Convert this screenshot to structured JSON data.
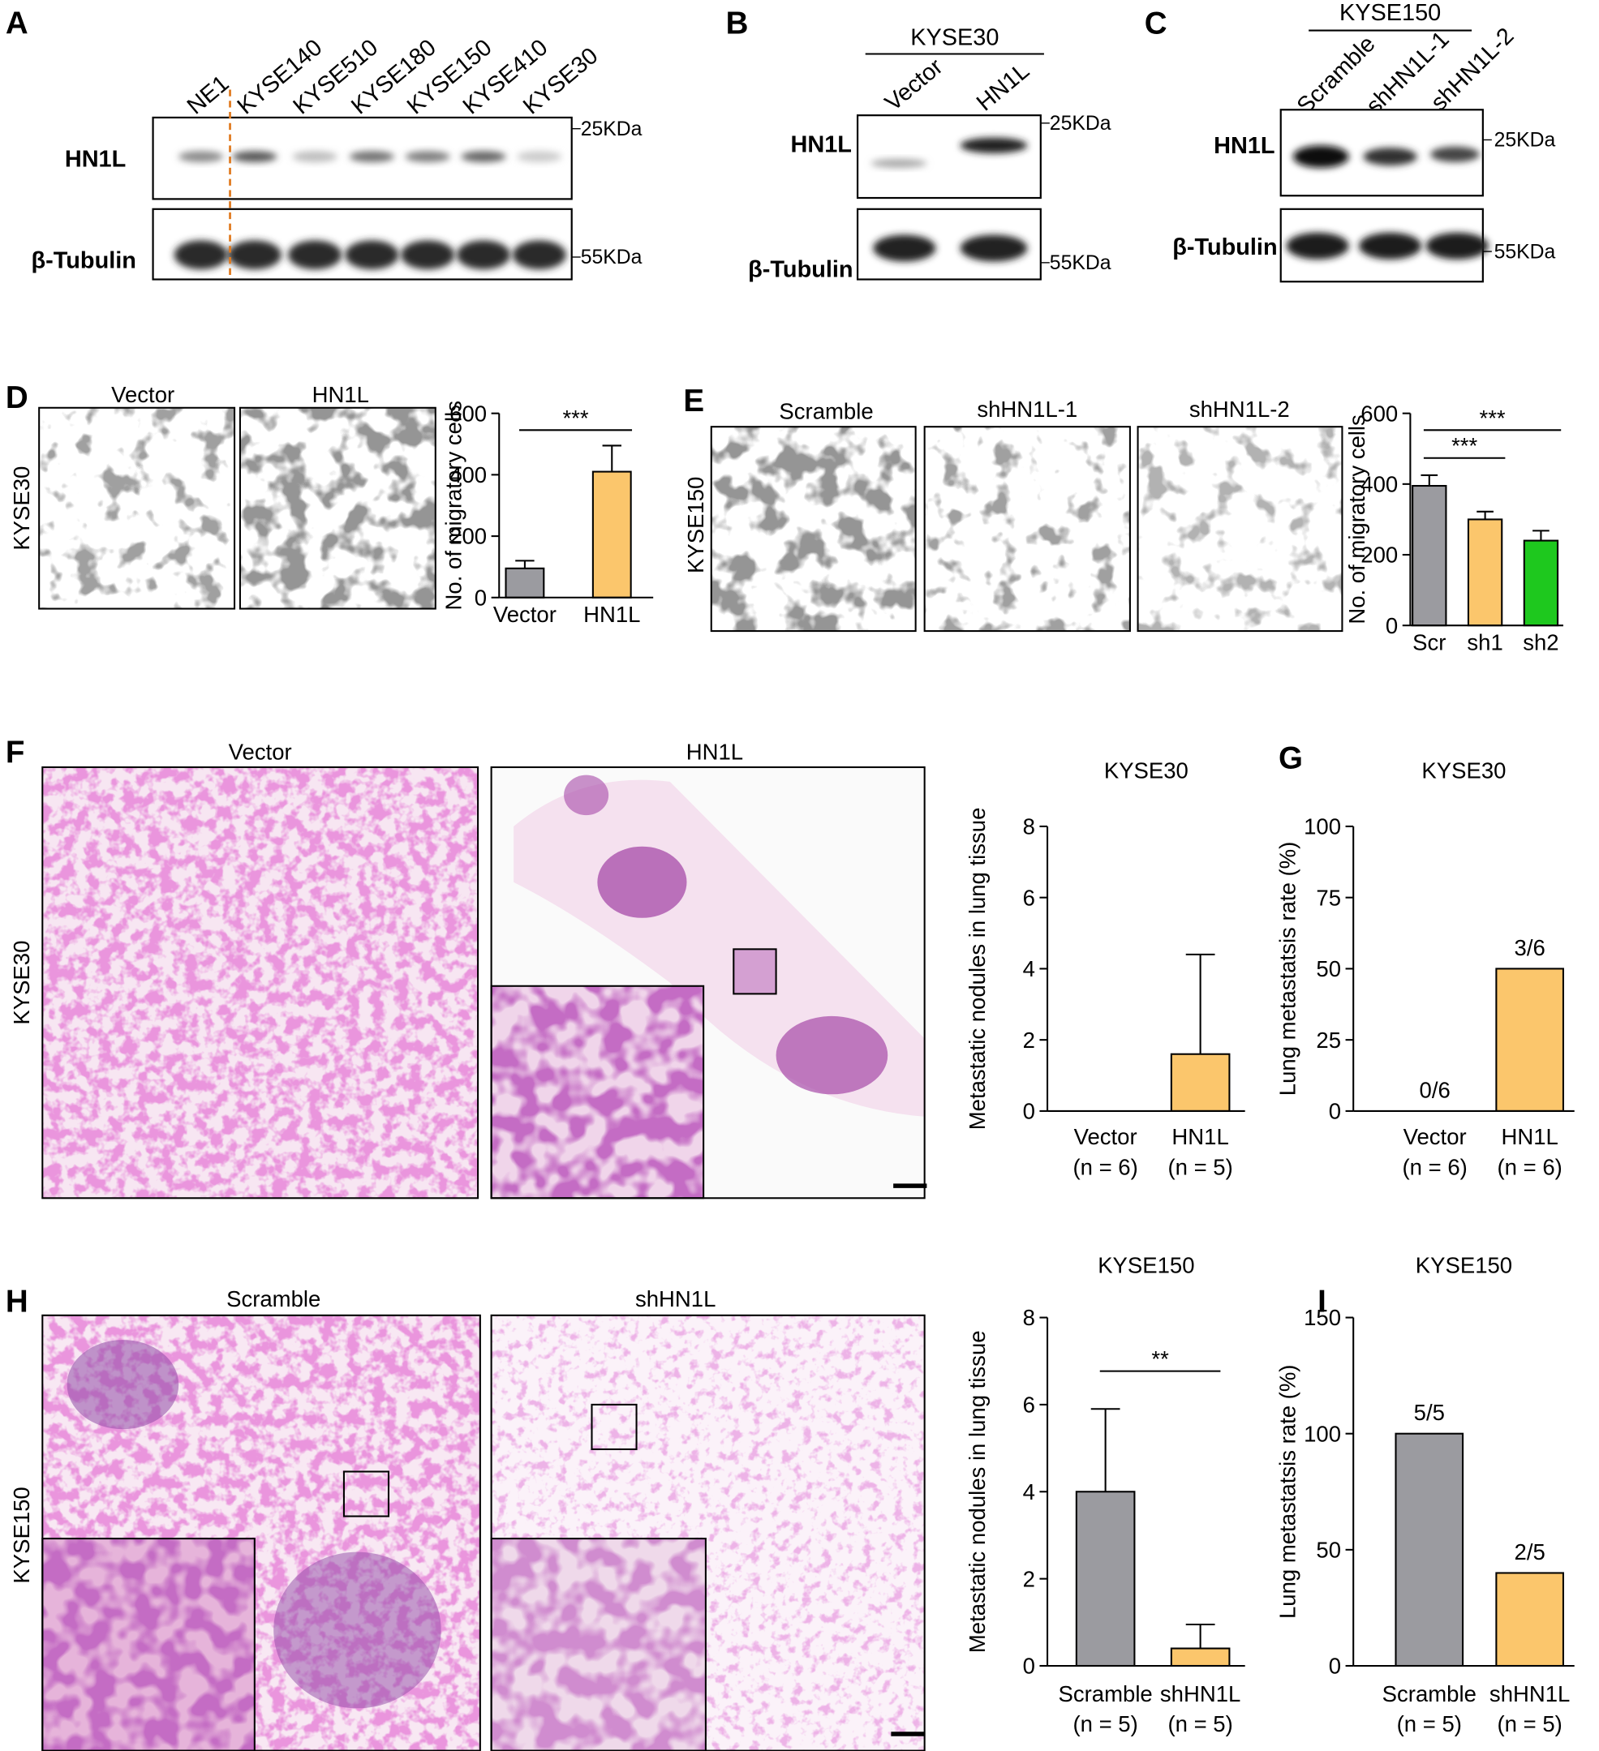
{
  "figure": {
    "panel_labels": [
      "A",
      "B",
      "C",
      "D",
      "E",
      "F",
      "G",
      "H",
      "I"
    ],
    "blot_a": {
      "lanes": [
        "NE1",
        "KYSE140",
        "KYSE510",
        "KYSE180",
        "KYSE150",
        "KYSE410",
        "KYSE30"
      ],
      "proteins": [
        "HN1L",
        "β-Tubulin"
      ],
      "markers": [
        "25KDa",
        "55KDa"
      ]
    },
    "blot_b": {
      "cell_line": "KYSE30",
      "lanes": [
        "Vector",
        "HN1L"
      ],
      "proteins": [
        "HN1L",
        "β-Tubulin"
      ],
      "markers": [
        "25KDa",
        "55KDa"
      ]
    },
    "blot_c": {
      "cell_line": "KYSE150",
      "lanes": [
        "Scramble",
        "shHN1L-1",
        "shHN1L-2"
      ],
      "proteins": [
        "HN1L",
        "β-Tubulin"
      ],
      "markers": [
        "25KDa",
        "55KDa"
      ]
    },
    "migration_d": {
      "cell_line": "KYSE30",
      "images": [
        "Vector",
        "HN1L"
      ]
    },
    "migration_e": {
      "cell_line": "KYSE150",
      "images": [
        "Scramble",
        "shHN1L-1",
        "shHN1L-2"
      ]
    },
    "histology_f": {
      "cell_line": "KYSE30",
      "images": [
        "Vector",
        "HN1L"
      ]
    },
    "histology_h": {
      "cell_line": "KYSE150",
      "images": [
        "Scramble",
        "shHN1L"
      ]
    }
  },
  "chart_data": [
    {
      "type": "bar",
      "ylabel": "No. of migratory cells",
      "categories": [
        "Vector",
        "HN1L"
      ],
      "values": [
        95,
        410
      ],
      "errors": [
        25,
        85
      ],
      "colors": [
        "#9b9ba0",
        "#fbc66c"
      ],
      "ylim": [
        0,
        600
      ],
      "yticks": [
        0,
        200,
        400,
        600
      ],
      "significance": [
        {
          "between": [
            "Vector",
            "HN1L"
          ],
          "label": "***"
        }
      ]
    },
    {
      "type": "bar",
      "ylabel": "No. of migratory cells",
      "categories": [
        "Scr",
        "sh1",
        "sh2"
      ],
      "values": [
        395,
        300,
        240
      ],
      "errors": [
        30,
        22,
        28
      ],
      "colors": [
        "#9b9ba0",
        "#fbc66c",
        "#1ec81e"
      ],
      "ylim": [
        0,
        600
      ],
      "yticks": [
        0,
        200,
        400,
        600
      ],
      "significance": [
        {
          "between": [
            "Scr",
            "sh1"
          ],
          "label": "***"
        },
        {
          "between": [
            "Scr",
            "sh2"
          ],
          "label": "***"
        }
      ]
    },
    {
      "type": "bar",
      "title": "KYSE30",
      "ylabel": "Metastatic nodules in lung tissue",
      "categories": [
        "Vector",
        "HN1L"
      ],
      "sample_sizes": [
        "(n = 6)",
        "(n = 5)"
      ],
      "values": [
        0,
        1.6
      ],
      "errors": [
        null,
        2.8
      ],
      "colors": [
        "#9b9ba0",
        "#fbc66c"
      ],
      "ylim": [
        0,
        8
      ],
      "yticks": [
        0,
        2,
        4,
        6,
        8
      ]
    },
    {
      "type": "bar",
      "title": "KYSE30",
      "ylabel": "Lung metastatsis rate (%)",
      "categories": [
        "Vector",
        "HN1L"
      ],
      "sample_sizes": [
        "(n = 6)",
        "(n = 6)"
      ],
      "values": [
        0,
        50
      ],
      "value_labels": [
        "0/6",
        "3/6"
      ],
      "colors": [
        "#9b9ba0",
        "#fbc66c"
      ],
      "ylim": [
        0,
        100
      ],
      "yticks": [
        0,
        25,
        50,
        75,
        100
      ]
    },
    {
      "type": "bar",
      "title": "KYSE150",
      "ylabel": "Metastatic nodules in lung tissue",
      "categories": [
        "Scramble",
        "shHN1L"
      ],
      "sample_sizes": [
        "(n = 5)",
        "(n = 5)"
      ],
      "values": [
        4,
        0.4
      ],
      "errors": [
        1.9,
        0.55
      ],
      "colors": [
        "#9b9ba0",
        "#fbc66c"
      ],
      "ylim": [
        0,
        8
      ],
      "yticks": [
        0,
        2,
        4,
        6,
        8
      ],
      "significance": [
        {
          "between": [
            "Scramble",
            "shHN1L"
          ],
          "label": "**"
        }
      ]
    },
    {
      "type": "bar",
      "title": "KYSE150",
      "ylabel": "Lung metastatsis rate (%)",
      "categories": [
        "Scramble",
        "shHN1L"
      ],
      "sample_sizes": [
        "(n = 5)",
        "(n = 5)"
      ],
      "values": [
        100,
        40
      ],
      "value_labels": [
        "5/5",
        "2/5"
      ],
      "colors": [
        "#9b9ba0",
        "#fbc66c"
      ],
      "ylim": [
        0,
        150
      ],
      "yticks": [
        0,
        50,
        100,
        150
      ]
    }
  ]
}
